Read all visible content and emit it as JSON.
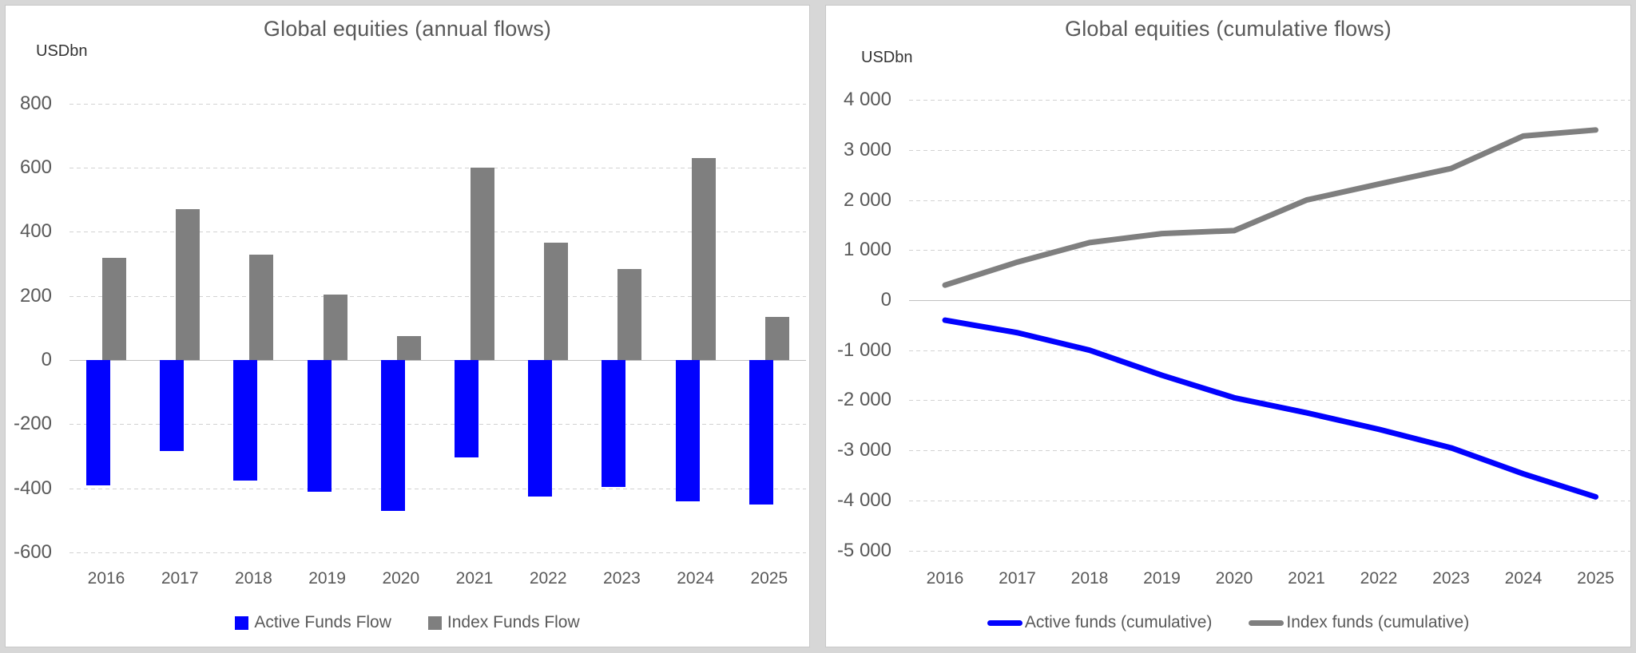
{
  "colors": {
    "active_blue": "#0202fe",
    "index_gray": "#7f7f7f",
    "text": "#595959",
    "unit_text": "#333333",
    "gridline": "#d2d2d2",
    "zero_line": "#c0c0c0",
    "card_background": "#ffffff",
    "page_background": "#d7d7d7"
  },
  "chart_data": [
    {
      "id": "annual",
      "type": "bar",
      "title": "Global equities (annual flows)",
      "unit_label": "USDbn",
      "xlabel": "",
      "ylabel": "USDbn",
      "ylim": [
        -600,
        800
      ],
      "grid": "horizontal-dashed",
      "legend_position": "bottom",
      "categories": [
        "2016",
        "2017",
        "2018",
        "2019",
        "2020",
        "2021",
        "2022",
        "2023",
        "2024",
        "2025"
      ],
      "series": [
        {
          "name": "Active Funds Flow",
          "color_key": "active_blue",
          "values": [
            -390,
            -285,
            -375,
            -410,
            -470,
            -305,
            -425,
            -395,
            -440,
            -450
          ]
        },
        {
          "name": "Index Funds Flow",
          "color_key": "index_gray",
          "values": [
            320,
            470,
            330,
            205,
            75,
            600,
            365,
            285,
            630,
            135
          ]
        }
      ],
      "y_ticks": [
        {
          "label": "800",
          "value": 800
        },
        {
          "label": "600",
          "value": 600
        },
        {
          "label": "400",
          "value": 400
        },
        {
          "label": "200",
          "value": 200
        },
        {
          "label": "0",
          "value": 0
        },
        {
          "label": "-200",
          "value": -200
        },
        {
          "label": "-400",
          "value": -400
        },
        {
          "label": "-600",
          "value": -600
        }
      ]
    },
    {
      "id": "cumulative",
      "type": "line",
      "title": "Global equities (cumulative flows)",
      "unit_label": "USDbn",
      "xlabel": "",
      "ylabel": "USDbn",
      "ylim": [
        -5000,
        4000
      ],
      "grid": "horizontal-dashed",
      "legend_position": "bottom",
      "categories": [
        "2016",
        "2017",
        "2018",
        "2019",
        "2020",
        "2021",
        "2022",
        "2023",
        "2024",
        "2025"
      ],
      "series": [
        {
          "name": "Active funds (cumulative)",
          "color_key": "active_blue",
          "values": [
            -400,
            -650,
            -1000,
            -1500,
            -1950,
            -2250,
            -2580,
            -2950,
            -3470,
            -3930
          ]
        },
        {
          "name": "Index funds (cumulative)",
          "color_key": "index_gray",
          "values": [
            300,
            760,
            1150,
            1330,
            1390,
            2000,
            2320,
            2630,
            3280,
            3400
          ]
        }
      ],
      "y_ticks": [
        {
          "label": "4 000",
          "value": 4000
        },
        {
          "label": "3 000",
          "value": 3000
        },
        {
          "label": "2 000",
          "value": 2000
        },
        {
          "label": "1 000",
          "value": 1000
        },
        {
          "label": "0",
          "value": 0
        },
        {
          "label": "-1 000",
          "value": -1000
        },
        {
          "label": "-2 000",
          "value": -2000
        },
        {
          "label": "-3 000",
          "value": -3000
        },
        {
          "label": "-4 000",
          "value": -4000
        },
        {
          "label": "-5 000",
          "value": -5000
        }
      ]
    }
  ]
}
